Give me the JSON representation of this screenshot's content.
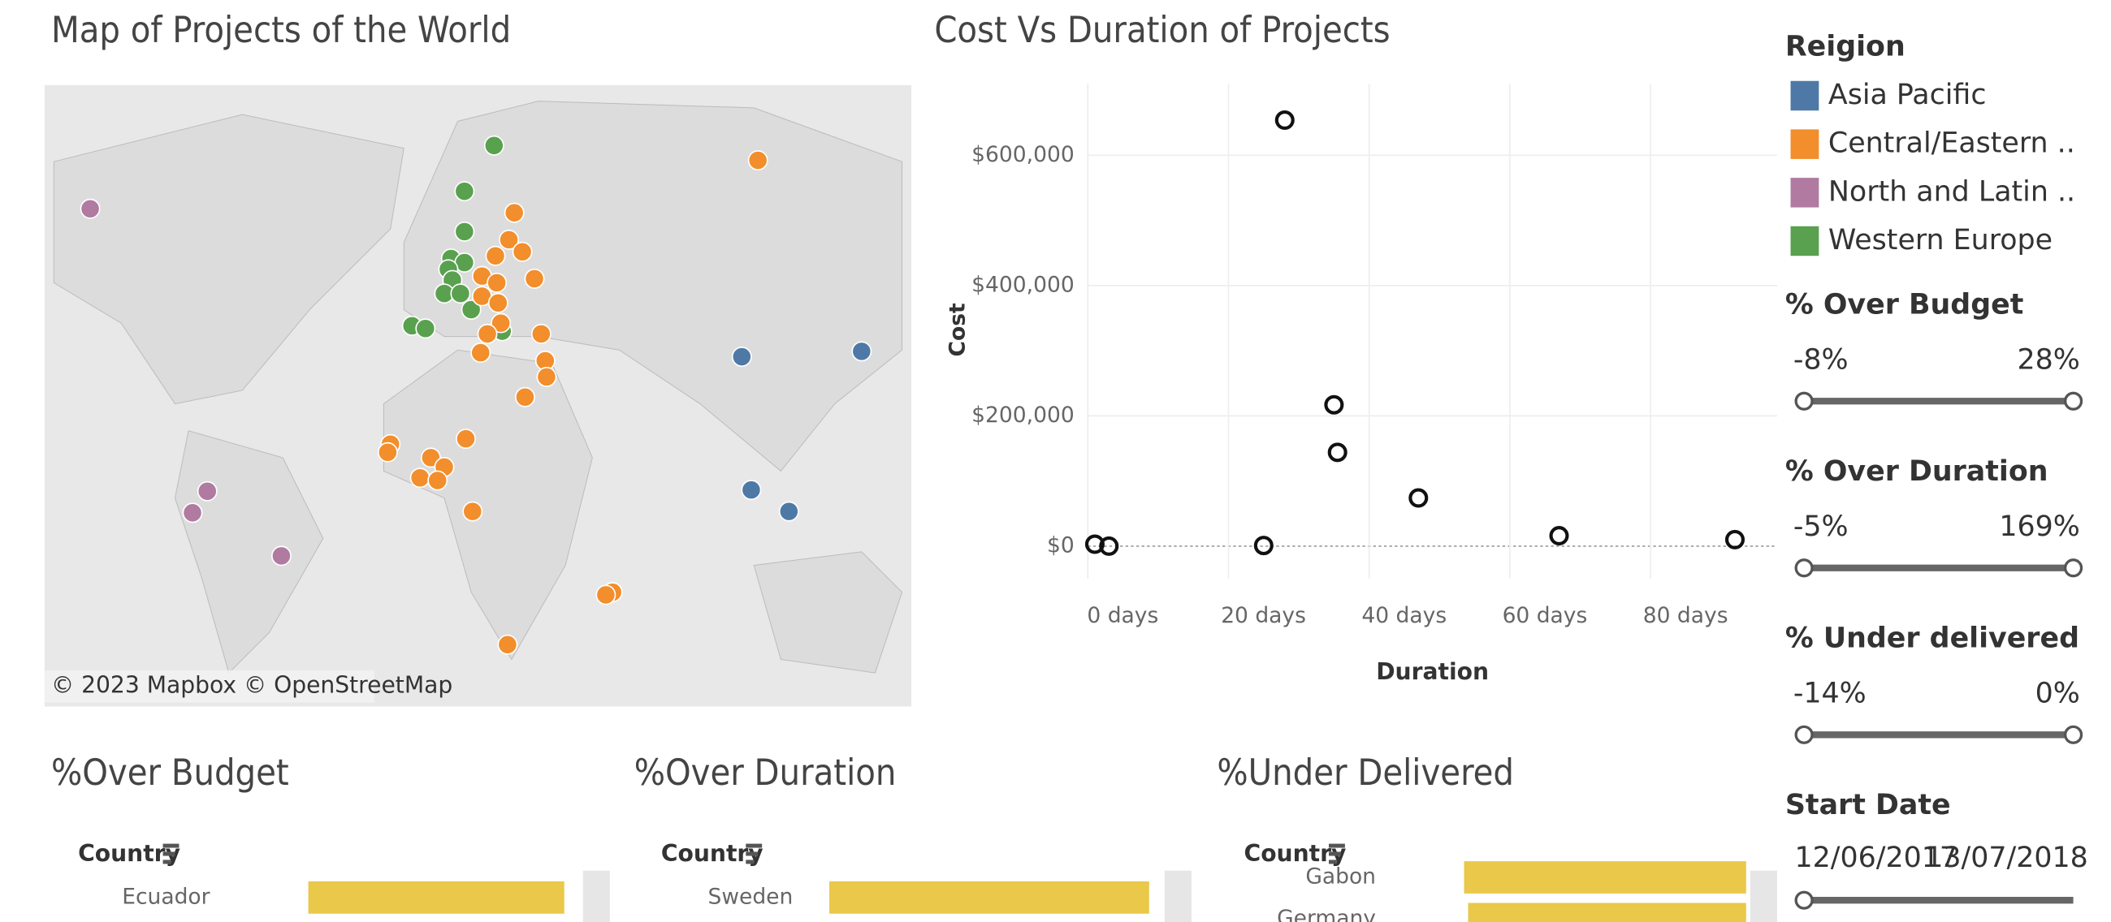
{
  "map": {
    "title": "Map of Projects of the World",
    "attribution": "© 2023 Mapbox © OpenStreetMap"
  },
  "chart_data": {
    "type": "scatter",
    "title": "Cost Vs Duration of Projects",
    "x_label": "Duration",
    "y_label": "Cost",
    "x": [
      1,
      3,
      25,
      28,
      35,
      35.5,
      47,
      67,
      92
    ],
    "values": [
      3000,
      0,
      1000,
      654000,
      217000,
      144000,
      74000,
      16000,
      10000
    ],
    "xlim": [
      0,
      98
    ],
    "ylim": [
      -50000,
      710000
    ],
    "xticks": [
      {
        "value": 0,
        "label": "0 days"
      },
      {
        "value": 20,
        "label": "20 days"
      },
      {
        "value": 40,
        "label": "40 days"
      },
      {
        "value": 60,
        "label": "60 days"
      },
      {
        "value": 80,
        "label": "80 days"
      }
    ],
    "yticks": [
      {
        "value": 0,
        "label": "$0"
      },
      {
        "value": 200000,
        "label": "$200,000"
      },
      {
        "value": 400000,
        "label": "$400,000"
      },
      {
        "value": 600000,
        "label": "$600,000"
      }
    ],
    "grid": true,
    "color": "#111111"
  },
  "legend": {
    "title": "Reigion",
    "items": [
      {
        "name": "Asia Pacific",
        "color": "#4e79a7"
      },
      {
        "name": "Central/Eastern ..",
        "color": "#f28e2b"
      },
      {
        "name": "North and Latin ..",
        "color": "#b07aa1"
      },
      {
        "name": "Western Europe",
        "color": "#59a14f"
      }
    ]
  },
  "filters": [
    {
      "title": "% Over Budget",
      "min": "-8%",
      "max": "28%"
    },
    {
      "title": "% Over Duration",
      "min": "-5%",
      "max": "169%"
    },
    {
      "title": "% Under delivered",
      "min": "-14%",
      "max": "0%"
    }
  ],
  "date_filter": {
    "title": "Start Date",
    "start": "12/06/2017",
    "end": "13/07/2018"
  },
  "bar_panels": [
    {
      "title": "%Over Budget",
      "header": "Country",
      "categories": [
        "Ecuador"
      ],
      "values": [
        28
      ],
      "xlim": [
        0,
        29.6
      ],
      "color": "#e9c84a"
    },
    {
      "title": "%Over Duration",
      "header": "Country",
      "categories": [
        "Sweden"
      ],
      "values": [
        169
      ],
      "xlim": [
        0,
        175
      ],
      "color": "#e9c84a"
    },
    {
      "title": "%Under Delivered",
      "header": "Country",
      "categories": [
        "Gabon",
        "Germany"
      ],
      "values": [
        -14,
        -13.8
      ],
      "xlim": [
        -14.5,
        0
      ],
      "color": "#e9c84a"
    }
  ]
}
